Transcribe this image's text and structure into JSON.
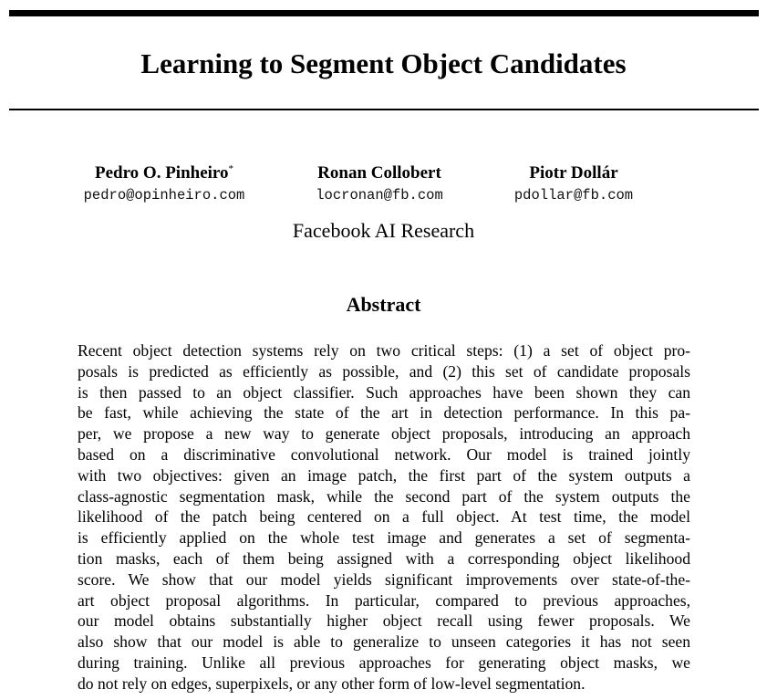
{
  "paper": {
    "title": "Learning to Segment Object Candidates",
    "authors": [
      {
        "name": "Pedro O. Pinheiro",
        "mark": "*",
        "email": "pedro@opinheiro.com"
      },
      {
        "name": "Ronan Collobert",
        "mark": "",
        "email": "locronan@fb.com"
      },
      {
        "name": "Piotr Dollár",
        "mark": "",
        "email": "pdollar@fb.com"
      }
    ],
    "affiliation": "Facebook AI Research",
    "abstract_heading": "Abstract",
    "abstract_lines": [
      "Recent object detection systems rely on two critical steps: (1) a set of object pro-",
      "posals is predicted as efficiently as possible, and (2) this set of candidate proposals",
      "is then passed to an object classifier. Such approaches have been shown they can",
      "be fast, while achieving the state of the art in detection performance. In this pa-",
      "per, we propose a new way to generate object proposals, introducing an approach",
      "based on a discriminative convolutional network. Our model is trained jointly",
      "with two objectives: given an image patch, the first part of the system outputs a",
      "class-agnostic segmentation mask, while the second part of the system outputs the",
      "likelihood of the patch being centered on a full object. At test time, the model",
      "is efficiently applied on the whole test image and generates a set of segmenta-",
      "tion masks, each of them being assigned with a corresponding object likelihood",
      "score. We show that our model yields significant improvements over state-of-the-",
      "art object proposal algorithms. In particular, compared to previous approaches,",
      "our model obtains substantially higher object recall using fewer proposals. We",
      "also show that our model is able to generalize to unseen categories it has not seen",
      "during training. Unlike all previous approaches for generating object masks, we",
      "do not rely on edges, superpixels, or any other form of low-level segmentation."
    ]
  }
}
